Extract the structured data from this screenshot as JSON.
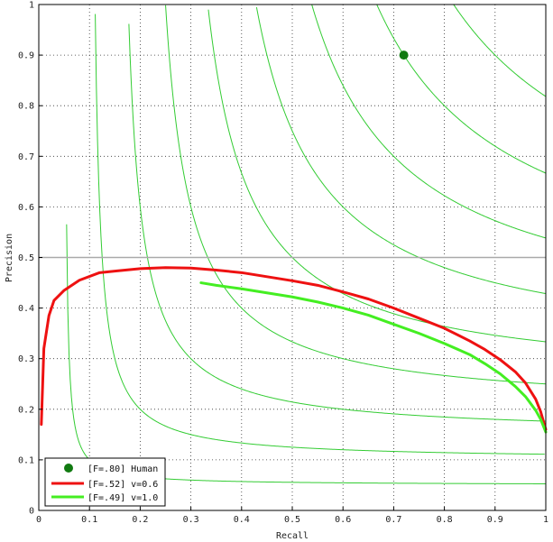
{
  "chart_data": {
    "type": "line",
    "title": "",
    "xlabel": "Recall",
    "ylabel": "Precision",
    "xlim": [
      0,
      1
    ],
    "ylim": [
      0,
      1
    ],
    "xticks": [
      "0",
      "0.1",
      "0.2",
      "0.3",
      "0.4",
      "0.5",
      "0.6",
      "0.7",
      "0.8",
      "0.9",
      "1"
    ],
    "yticks": [
      "0",
      "0.1",
      "0.2",
      "0.3",
      "0.4",
      "0.5",
      "0.6",
      "0.7",
      "0.8",
      "0.9",
      "1"
    ],
    "grid": true,
    "grid_style": "dotted",
    "reference_line": {
      "y": 0.5,
      "color": "#aaaaaa"
    },
    "iso_f_contours": {
      "f_values": [
        0.1,
        0.2,
        0.3,
        0.4,
        0.5,
        0.6,
        0.7,
        0.8,
        0.9
      ],
      "color": "#33cc33"
    },
    "points": [
      {
        "x": 0.72,
        "y": 0.9,
        "color": "#117a11"
      }
    ],
    "series": [
      {
        "color": "#ee1111",
        "x": [
          0.005,
          0.01,
          0.02,
          0.03,
          0.05,
          0.08,
          0.12,
          0.15,
          0.2,
          0.25,
          0.3,
          0.35,
          0.4,
          0.45,
          0.5,
          0.55,
          0.6,
          0.65,
          0.7,
          0.75,
          0.8,
          0.85,
          0.88,
          0.91,
          0.94,
          0.96,
          0.98,
          0.99,
          1.0
        ],
        "y": [
          0.17,
          0.32,
          0.385,
          0.415,
          0.435,
          0.455,
          0.47,
          0.473,
          0.478,
          0.48,
          0.479,
          0.475,
          0.47,
          0.462,
          0.454,
          0.445,
          0.432,
          0.418,
          0.4,
          0.38,
          0.36,
          0.335,
          0.318,
          0.298,
          0.274,
          0.252,
          0.22,
          0.195,
          0.16
        ]
      },
      {
        "color": "#44ee22",
        "x": [
          0.32,
          0.35,
          0.4,
          0.45,
          0.5,
          0.55,
          0.6,
          0.65,
          0.7,
          0.75,
          0.8,
          0.85,
          0.88,
          0.91,
          0.94,
          0.96,
          0.98,
          0.99,
          1.0
        ],
        "y": [
          0.45,
          0.445,
          0.438,
          0.43,
          0.422,
          0.412,
          0.4,
          0.386,
          0.368,
          0.35,
          0.33,
          0.308,
          0.29,
          0.27,
          0.245,
          0.225,
          0.198,
          0.18,
          0.155
        ]
      }
    ],
    "legend": {
      "position": "bottom-left",
      "entries": [
        {
          "label": "[F=.80] Human",
          "marker": "dot",
          "color": "#117a11"
        },
        {
          "label": "[F=.52] v=0.6",
          "marker": "line",
          "color": "#ee1111"
        },
        {
          "label": "[F=.49] v=1.0",
          "marker": "line",
          "color": "#44ee22"
        }
      ]
    }
  }
}
